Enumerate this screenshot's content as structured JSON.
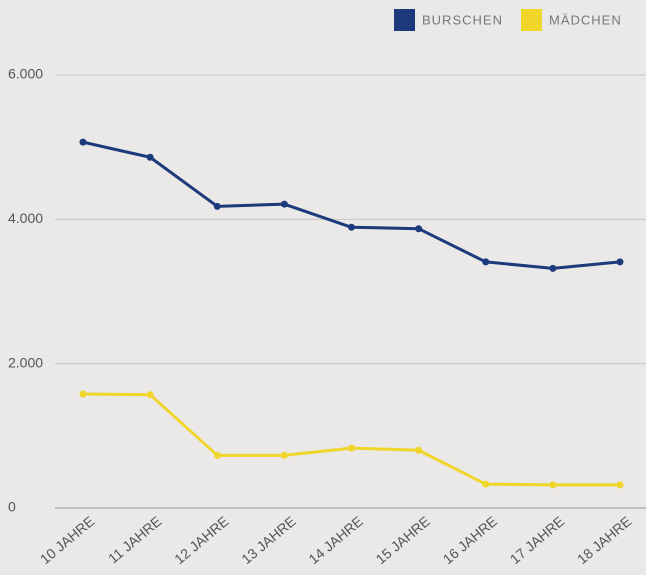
{
  "chart_data": {
    "type": "line",
    "categories": [
      "10 JAHRE",
      "11 JAHRE",
      "12 JAHRE",
      "13 JAHRE",
      "14 JAHRE",
      "15 JAHRE",
      "16 JAHRE",
      "17 JAHRE",
      "18 JAHRE"
    ],
    "series": [
      {
        "name": "BURSCHEN",
        "color": "#1c3a7c",
        "values": [
          5070,
          4860,
          4180,
          4210,
          3890,
          3870,
          3410,
          3320,
          3410
        ]
      },
      {
        "name": "MÄDCHEN",
        "color": "#f0d52a",
        "values": [
          1580,
          1570,
          730,
          730,
          830,
          800,
          330,
          320,
          320
        ]
      }
    ],
    "ylim": [
      0,
      6000
    ],
    "yticks": [
      0,
      {
        "value": 2000,
        "label": "2.000"
      },
      {
        "value": 4000,
        "label": "4.000"
      },
      {
        "value": 6000,
        "label": "6.000"
      }
    ],
    "grid": true,
    "legend": "top-right"
  }
}
